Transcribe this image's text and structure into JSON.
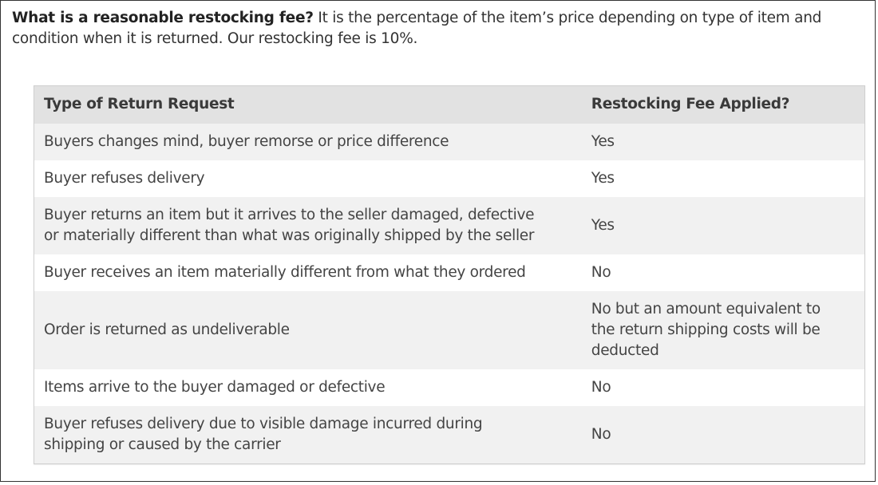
{
  "intro": {
    "question": "What is a reasonable restocking fee?",
    "answer": " It is the percentage of the item’s price depending on type of item and condition when it is returned. Our restocking fee is 10%."
  },
  "table": {
    "headers": [
      "Type of Return Request",
      "Restocking Fee Applied?"
    ],
    "rows": [
      {
        "type": "Buyers changes mind, buyer remorse or price difference",
        "fee": "Yes"
      },
      {
        "type": "Buyer refuses delivery",
        "fee": "Yes"
      },
      {
        "type": "Buyer returns an item but it arrives to the seller damaged, defective or materially different than what was originally shipped by the seller",
        "fee": "Yes"
      },
      {
        "type": "Buyer receives an item materially different from what they ordered",
        "fee": "No"
      },
      {
        "type": "Order is returned as undeliverable",
        "fee": "No but an amount equivalent to the return shipping costs will be deducted"
      },
      {
        "type": "Items arrive to the buyer damaged or defective",
        "fee": "No"
      },
      {
        "type": "Buyer refuses delivery due to visible damage incurred during shipping or caused by the carrier",
        "fee": "No"
      }
    ]
  },
  "colors": {
    "text": "#444444",
    "header_bg": "#e2e2e2",
    "stripe_bg": "#f1f1f1",
    "table_border": "#cfcfcf",
    "frame_border": "#333333"
  }
}
